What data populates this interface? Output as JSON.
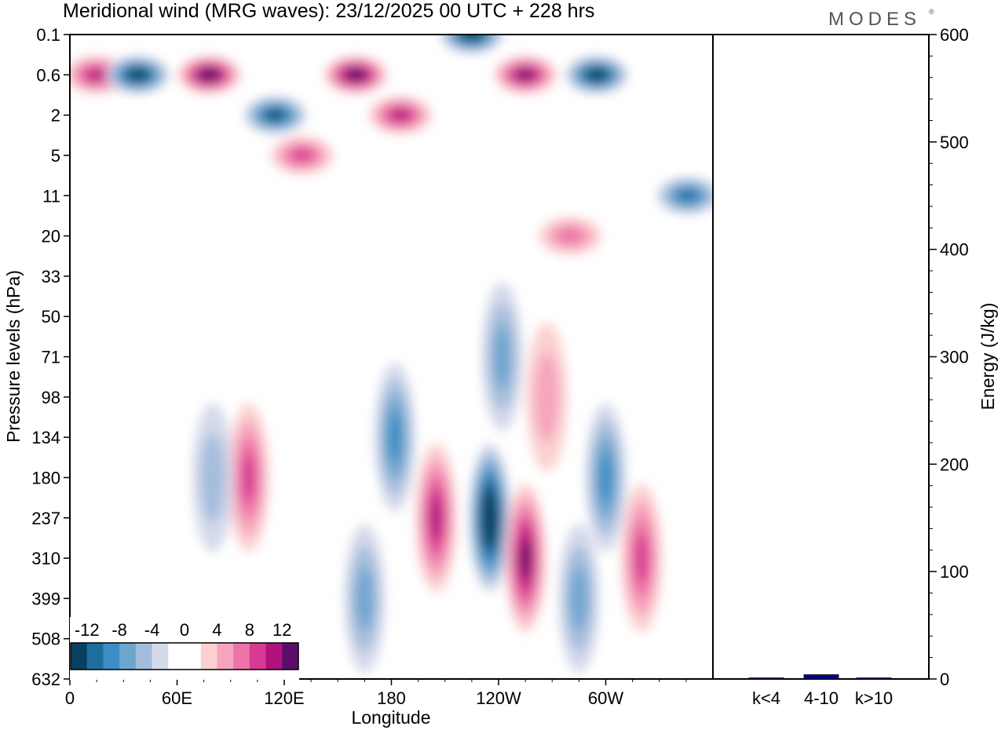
{
  "title": "Meridional wind (MRG waves):  23/12/2025  00 UTC  + 228 hrs",
  "brand": "MODES",
  "brand_mark": "®",
  "chart_data": [
    {
      "type": "heatmap",
      "variable": "Meridional wind (MRG waves)",
      "xlabel": "Longitude",
      "ylabel": "Pressure levels (hPa)",
      "xticks": [
        "0",
        "60E",
        "120E",
        "180",
        "120W",
        "60W"
      ],
      "yticks": [
        "0.1",
        "0.6",
        "2",
        "5",
        "11",
        "20",
        "33",
        "50",
        "71",
        "98",
        "134",
        "180",
        "237",
        "310",
        "399",
        "508",
        "632"
      ],
      "contour_levels": [
        -14,
        -12,
        -10,
        -8,
        -6,
        -4,
        -2,
        0,
        2,
        4,
        6,
        8,
        10,
        12,
        14
      ],
      "colorbar_labels": [
        "-12",
        "-8",
        "-4",
        "0",
        "4",
        "8",
        "12"
      ],
      "colorbar_colors": [
        "#08405f",
        "#1f6f9e",
        "#3a8ec3",
        "#6ea5cf",
        "#a4bddc",
        "#d4d9ea",
        "#ffffff",
        "#ffffff",
        "#fbd0cf",
        "#f6a4bd",
        "#ec74a8",
        "#d83a92",
        "#b0127e",
        "#5c0f6a"
      ],
      "anomalies": [
        {
          "lon": 15,
          "lev": "0.6",
          "v": 9
        },
        {
          "lon": 38,
          "lev": "0.6",
          "v": -13
        },
        {
          "lon": 78,
          "lev": "0.6",
          "v": 13
        },
        {
          "lon": 115,
          "lev": "2",
          "v": -11
        },
        {
          "lon": 160,
          "lev": "0.6",
          "v": 13
        },
        {
          "lon": 185,
          "lev": "2",
          "v": 9
        },
        {
          "lon": 225,
          "lev": "0.1",
          "v": -13
        },
        {
          "lon": 255,
          "lev": "0.6",
          "v": 12
        },
        {
          "lon": 295,
          "lev": "0.6",
          "v": -14
        },
        {
          "lon": 346,
          "lev": "11",
          "v": -9
        },
        {
          "lon": 130,
          "lev": "5",
          "v": 7
        },
        {
          "lon": 205,
          "lev": "237",
          "v": 10
        },
        {
          "lon": 235,
          "lev": "237",
          "v": -15
        },
        {
          "lon": 255,
          "lev": "310",
          "v": 11
        },
        {
          "lon": 182,
          "lev": "134",
          "v": -7
        },
        {
          "lon": 300,
          "lev": "180",
          "v": -8
        },
        {
          "lon": 320,
          "lev": "310",
          "v": 7
        },
        {
          "lon": 100,
          "lev": "180",
          "v": 8
        },
        {
          "lon": 80,
          "lev": "180",
          "v": -4
        },
        {
          "lon": 267,
          "lev": "98",
          "v": 4
        },
        {
          "lon": 242,
          "lev": "71",
          "v": -5
        },
        {
          "lon": 280,
          "lev": "20",
          "v": 6
        },
        {
          "lon": 165,
          "lev": "399",
          "v": -5
        },
        {
          "lon": 285,
          "lev": "399",
          "v": -5
        }
      ]
    },
    {
      "type": "bar",
      "categories": [
        "k<4",
        "4-10",
        "k>10"
      ],
      "values": [
        1,
        4,
        1
      ],
      "ylabel": "Energy (J/kg)",
      "ylim": [
        0,
        600
      ],
      "yticks": [
        "0",
        "100",
        "200",
        "300",
        "400",
        "500",
        "600"
      ],
      "bar_color": "#00008b"
    }
  ]
}
